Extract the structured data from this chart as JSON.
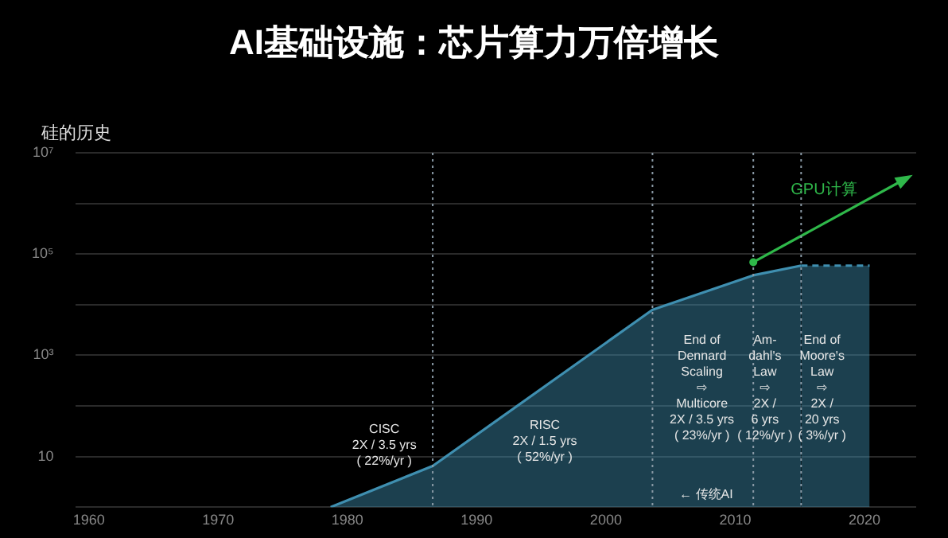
{
  "chart_data": {
    "type": "area",
    "title": "AI基础设施：芯片算力万倍增长",
    "ylabel": "硅的历史",
    "series": [
      {
        "color": "#3f8fb0",
        "x": [
          1978.7,
          1986.6,
          2003.6,
          2011.4,
          2015.1
        ],
        "values": [
          1,
          6.5,
          7900,
          38000,
          59000
        ]
      },
      {
        "color": "#3f8fb0",
        "line_style": "dashed",
        "x": [
          2015.1,
          2020.4
        ],
        "values": [
          59000,
          59000
        ]
      },
      {
        "type": "line",
        "name": "GPU计算",
        "color": "#2fb84a",
        "x": [
          2011.4,
          2023.3
        ],
        "values": [
          69000,
          3200000
        ]
      }
    ],
    "xlim": [
      1959,
      2024
    ],
    "xticks": [
      1960,
      1970,
      1980,
      1990,
      2000,
      2010,
      2020
    ],
    "ylim": [
      1,
      10000000
    ],
    "log": true,
    "yticks": [
      {
        "value": 1,
        "label": null
      },
      {
        "value": 10,
        "label": "10"
      },
      {
        "value": 100,
        "label": null
      },
      {
        "value": 1000,
        "label": "10³"
      },
      {
        "value": 10000,
        "label": null
      },
      {
        "value": 100000,
        "label": "10⁵"
      },
      {
        "value": 1000000,
        "label": null
      },
      {
        "value": 10000000,
        "label": "10⁷"
      }
    ],
    "grid": "y",
    "legend": "top right",
    "ref_lines": [
      {
        "axis": "x",
        "value": 1986.6,
        "color": "#8a9aa6",
        "line_style": "dotted"
      },
      {
        "axis": "x",
        "value": 2003.6,
        "color": "#8a9aa6",
        "line_style": "dotted"
      },
      {
        "axis": "x",
        "value": 2011.4,
        "color": "#8a9aa6",
        "line_style": "dotted"
      },
      {
        "axis": "x",
        "value": 2015.1,
        "color": "#8a9aa6",
        "line_style": "dotted"
      }
    ],
    "annotations": [
      "CISC\n2X / 3.5 yrs\n( 22%/yr )",
      "RISC\n2X / 1.5 yrs\n( 52%/yr )",
      "End of\nDennard\nScaling\n⇨\nMulticore\n2X / 3.5 yrs\n( 23%/yr )",
      "Am-\ndahl's\nLaw\n⇨\n2X /\n6 yrs\n( 12%/yr )",
      "End of\nMoore's\nLaw\n⇨\n2X /\n20 yrs\n( 3%/yr )",
      "← 传统AI"
    ]
  }
}
